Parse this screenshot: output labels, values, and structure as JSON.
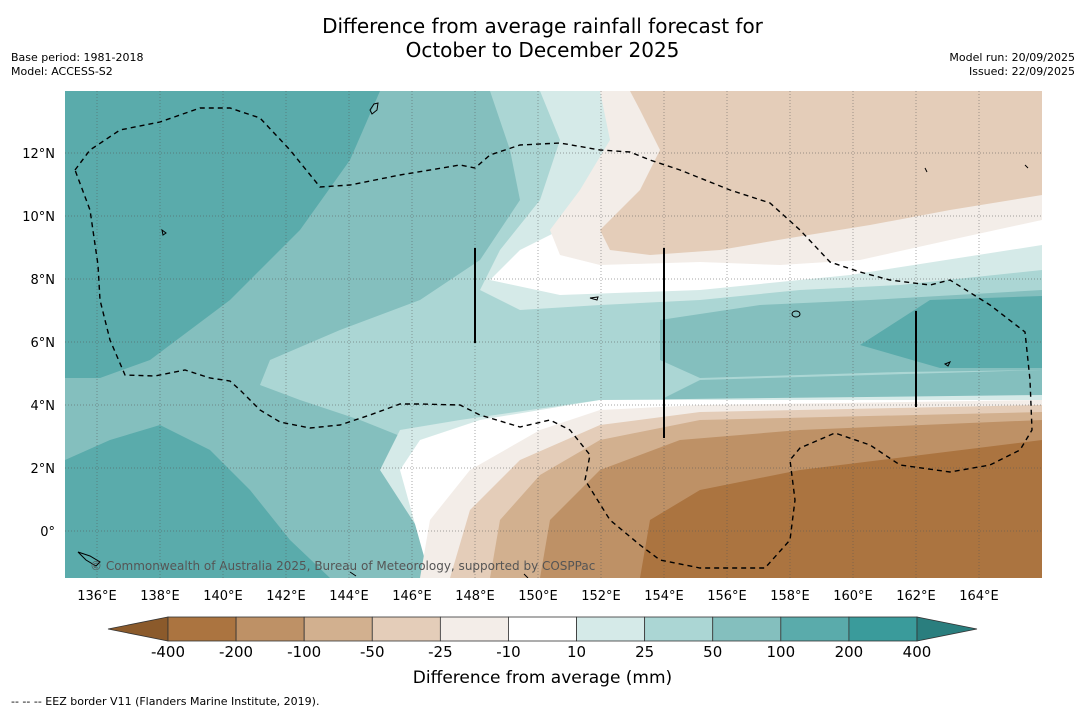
{
  "title": {
    "line1": "Difference from average rainfall forecast for",
    "line2": "October to December 2025"
  },
  "meta": {
    "base_period": "Base period: 1981-2018",
    "model": "Model: ACCESS-S2",
    "model_run": "Model run: 20/09/2025",
    "issued": "Issued: 22/09/2025"
  },
  "map": {
    "lat_ticks": [
      "12°N",
      "10°N",
      "8°N",
      "6°N",
      "4°N",
      "2°N",
      "0°"
    ],
    "lon_ticks": [
      "136°E",
      "138°E",
      "140°E",
      "142°E",
      "144°E",
      "146°E",
      "148°E",
      "150°E",
      "152°E",
      "154°E",
      "156°E",
      "158°E",
      "160°E",
      "162°E",
      "164°E"
    ],
    "copyright": "© Commonwealth of Australia 2025, Bureau of Meteorology, supported by COSPPac"
  },
  "colorbar": {
    "labels": [
      "-400",
      "-200",
      "-100",
      "-50",
      "-25",
      "-10",
      "10",
      "25",
      "50",
      "100",
      "200",
      "400"
    ],
    "colors": [
      "#8b5a2b",
      "#ab7440",
      "#be9166",
      "#d2b08f",
      "#e4cdb9",
      "#f3ede8",
      "#ffffff",
      "#d5eae8",
      "#abd6d4",
      "#84bfbe",
      "#5aabab",
      "#3a9b9b",
      "#2a7e7e"
    ],
    "title": "Difference from average (mm)"
  },
  "footer": "-- -- -- EEZ border V11 (Flanders Marine Institute, 2019)."
}
